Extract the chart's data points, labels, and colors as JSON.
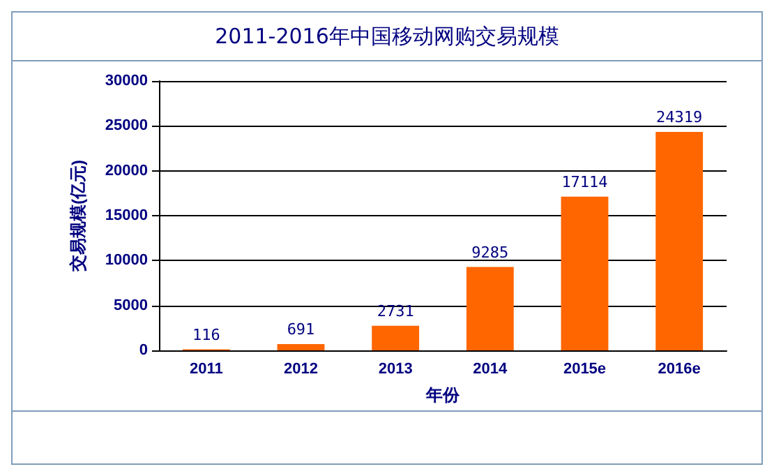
{
  "chart_data": {
    "type": "bar",
    "title": "2011-2016年中国移动网购交易规模",
    "categories": [
      "2011",
      "2012",
      "2013",
      "2014",
      "2015e",
      "2016e"
    ],
    "values": [
      116,
      691,
      2731,
      9285,
      17114,
      24319
    ],
    "color": "#ff6600",
    "xlabel": "年份",
    "ylabel": "交易规模(亿元)",
    "ylim": [
      0,
      30000
    ],
    "yticks": [
      0,
      5000,
      10000,
      15000,
      20000,
      25000,
      30000
    ],
    "grid": "y",
    "data_labels": true
  }
}
